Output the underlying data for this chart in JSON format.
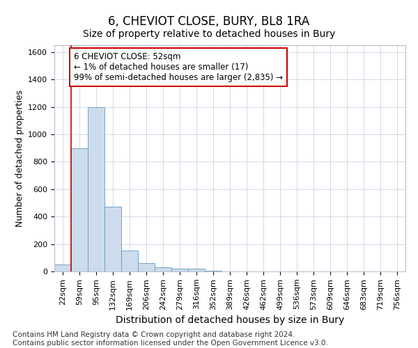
{
  "title": "6, CHEVIOT CLOSE, BURY, BL8 1RA",
  "subtitle": "Size of property relative to detached houses in Bury",
  "xlabel": "Distribution of detached houses by size in Bury",
  "ylabel": "Number of detached properties",
  "bar_labels": [
    "22sqm",
    "59sqm",
    "95sqm",
    "132sqm",
    "169sqm",
    "206sqm",
    "242sqm",
    "279sqm",
    "316sqm",
    "352sqm",
    "389sqm",
    "426sqm",
    "462sqm",
    "499sqm",
    "536sqm",
    "573sqm",
    "609sqm",
    "646sqm",
    "683sqm",
    "719sqm",
    "756sqm"
  ],
  "bar_values": [
    50,
    900,
    1200,
    470,
    150,
    60,
    30,
    20,
    20,
    5,
    0,
    0,
    0,
    0,
    0,
    0,
    0,
    0,
    0,
    0,
    0
  ],
  "bar_color": "#ccdcec",
  "bar_edgecolor": "#6699bb",
  "ylim": [
    0,
    1650
  ],
  "yticks": [
    0,
    200,
    400,
    600,
    800,
    1000,
    1200,
    1400,
    1600
  ],
  "vline_x": 1.0,
  "vline_color": "#cc0000",
  "annotation_text": "6 CHEVIOT CLOSE: 52sqm\n← 1% of detached houses are smaller (17)\n99% of semi-detached houses are larger (2,835) →",
  "annotation_box_facecolor": "#ffffff",
  "annotation_box_edgecolor": "#cc0000",
  "footer_text": "Contains HM Land Registry data © Crown copyright and database right 2024.\nContains public sector information licensed under the Open Government Licence v3.0.",
  "title_fontsize": 12,
  "subtitle_fontsize": 10,
  "xlabel_fontsize": 10,
  "ylabel_fontsize": 9,
  "tick_fontsize": 8,
  "annotation_fontsize": 8.5,
  "footer_fontsize": 7.5,
  "grid_color": "#d0d8e8"
}
